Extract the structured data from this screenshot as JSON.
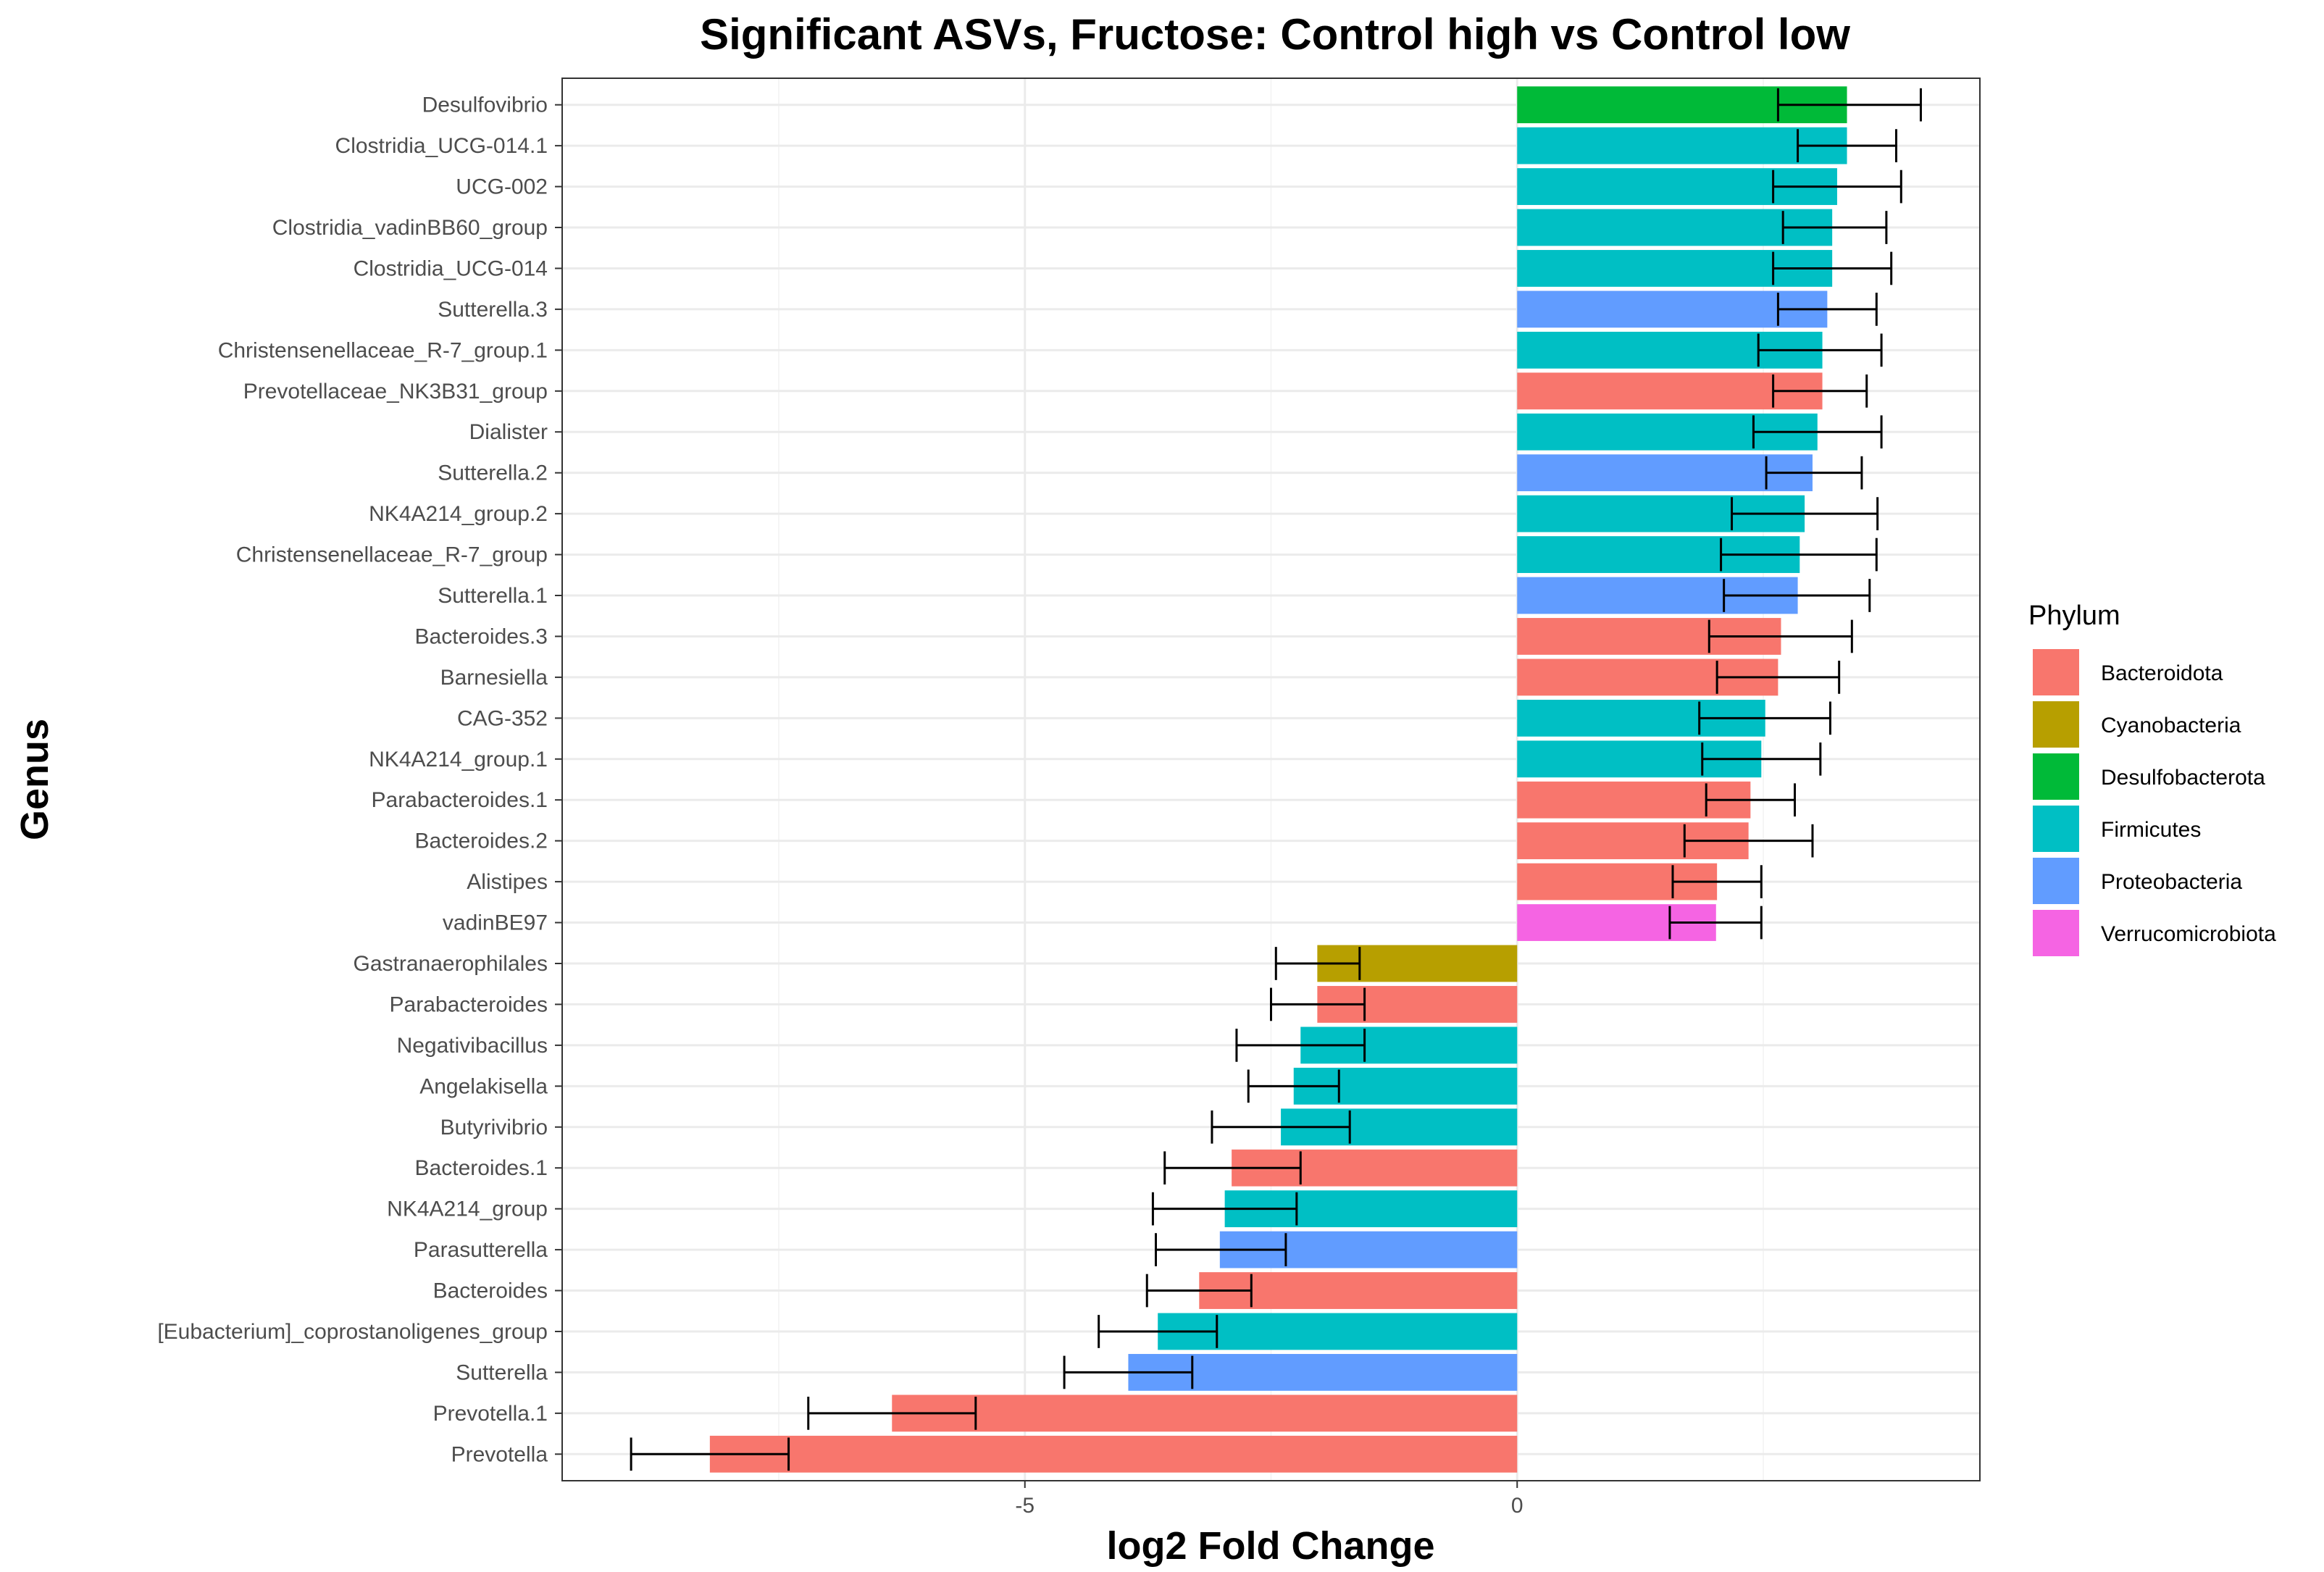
{
  "chart_data": {
    "type": "bar",
    "orientation": "horizontal",
    "title": "Significant ASVs, Fructose: Control high vs Control low",
    "xlabel": "log2 Fold Change",
    "ylabel": "Genus",
    "xlim": [
      -9.7,
      4.7
    ],
    "xticks": [
      -5,
      0
    ],
    "xtick_labels": [
      "-5",
      "0"
    ],
    "grid": true,
    "legend": {
      "title": "Phylum",
      "placement": "right",
      "entries": [
        {
          "name": "Bacteroidota",
          "color": "#F8766D"
        },
        {
          "name": "Cyanobacteria",
          "color": "#B79F00"
        },
        {
          "name": "Desulfobacterota",
          "color": "#00BA38"
        },
        {
          "name": "Firmicutes",
          "color": "#00BFC4"
        },
        {
          "name": "Proteobacteria",
          "color": "#619CFF"
        },
        {
          "name": "Verrucomicrobiota",
          "color": "#F564E3"
        }
      ]
    },
    "bars": [
      {
        "genus": "Desulfovibrio",
        "phylum": "Desulfobacterota",
        "value": 3.35,
        "err_low": 2.65,
        "err_high": 4.1
      },
      {
        "genus": "Clostridia_UCG-014.1",
        "phylum": "Firmicutes",
        "value": 3.35,
        "err_low": 2.85,
        "err_high": 3.85
      },
      {
        "genus": "UCG-002",
        "phylum": "Firmicutes",
        "value": 3.25,
        "err_low": 2.6,
        "err_high": 3.9
      },
      {
        "genus": "Clostridia_vadinBB60_group",
        "phylum": "Firmicutes",
        "value": 3.2,
        "err_low": 2.7,
        "err_high": 3.75
      },
      {
        "genus": "Clostridia_UCG-014",
        "phylum": "Firmicutes",
        "value": 3.2,
        "err_low": 2.6,
        "err_high": 3.8
      },
      {
        "genus": "Sutterella.3",
        "phylum": "Proteobacteria",
        "value": 3.15,
        "err_low": 2.65,
        "err_high": 3.65
      },
      {
        "genus": "Christensenellaceae_R-7_group.1",
        "phylum": "Firmicutes",
        "value": 3.1,
        "err_low": 2.45,
        "err_high": 3.7
      },
      {
        "genus": "Prevotellaceae_NK3B31_group",
        "phylum": "Bacteroidota",
        "value": 3.1,
        "err_low": 2.6,
        "err_high": 3.55
      },
      {
        "genus": "Dialister",
        "phylum": "Firmicutes",
        "value": 3.05,
        "err_low": 2.4,
        "err_high": 3.7
      },
      {
        "genus": "Sutterella.2",
        "phylum": "Proteobacteria",
        "value": 3.0,
        "err_low": 2.53,
        "err_high": 3.5
      },
      {
        "genus": "NK4A214_group.2",
        "phylum": "Firmicutes",
        "value": 2.92,
        "err_low": 2.18,
        "err_high": 3.66
      },
      {
        "genus": "Christensenellaceae_R-7_group",
        "phylum": "Firmicutes",
        "value": 2.87,
        "err_low": 2.07,
        "err_high": 3.65
      },
      {
        "genus": "Sutterella.1",
        "phylum": "Proteobacteria",
        "value": 2.85,
        "err_low": 2.1,
        "err_high": 3.58
      },
      {
        "genus": "Bacteroides.3",
        "phylum": "Bacteroidota",
        "value": 2.68,
        "err_low": 1.95,
        "err_high": 3.4
      },
      {
        "genus": "Barnesiella",
        "phylum": "Bacteroidota",
        "value": 2.65,
        "err_low": 2.03,
        "err_high": 3.27
      },
      {
        "genus": "CAG-352",
        "phylum": "Firmicutes",
        "value": 2.52,
        "err_low": 1.85,
        "err_high": 3.18
      },
      {
        "genus": "NK4A214_group.1",
        "phylum": "Firmicutes",
        "value": 2.48,
        "err_low": 1.88,
        "err_high": 3.08
      },
      {
        "genus": "Parabacteroides.1",
        "phylum": "Bacteroidota",
        "value": 2.37,
        "err_low": 1.92,
        "err_high": 2.82
      },
      {
        "genus": "Bacteroides.2",
        "phylum": "Bacteroidota",
        "value": 2.35,
        "err_low": 1.7,
        "err_high": 3.0
      },
      {
        "genus": "Alistipes",
        "phylum": "Bacteroidota",
        "value": 2.03,
        "err_low": 1.58,
        "err_high": 2.48
      },
      {
        "genus": "vadinBE97",
        "phylum": "Verrucomicrobiota",
        "value": 2.02,
        "err_low": 1.55,
        "err_high": 2.48
      },
      {
        "genus": "Gastranaerophilales",
        "phylum": "Cyanobacteria",
        "value": -2.03,
        "err_low": -2.45,
        "err_high": -1.6
      },
      {
        "genus": "Parabacteroides",
        "phylum": "Bacteroidota",
        "value": -2.03,
        "err_low": -2.5,
        "err_high": -1.55
      },
      {
        "genus": "Negativibacillus",
        "phylum": "Firmicutes",
        "value": -2.2,
        "err_low": -2.85,
        "err_high": -1.55
      },
      {
        "genus": "Angelakisella",
        "phylum": "Firmicutes",
        "value": -2.27,
        "err_low": -2.73,
        "err_high": -1.81
      },
      {
        "genus": "Butyrivibrio",
        "phylum": "Firmicutes",
        "value": -2.4,
        "err_low": -3.1,
        "err_high": -1.7
      },
      {
        "genus": "Bacteroides.1",
        "phylum": "Bacteroidota",
        "value": -2.9,
        "err_low": -3.58,
        "err_high": -2.2
      },
      {
        "genus": "NK4A214_group",
        "phylum": "Firmicutes",
        "value": -2.97,
        "err_low": -3.7,
        "err_high": -2.24
      },
      {
        "genus": "Parasutterella",
        "phylum": "Proteobacteria",
        "value": -3.02,
        "err_low": -3.67,
        "err_high": -2.35
      },
      {
        "genus": "Bacteroides",
        "phylum": "Bacteroidota",
        "value": -3.23,
        "err_low": -3.76,
        "err_high": -2.7
      },
      {
        "genus": "[Eubacterium]_coprostanoligenes_group",
        "phylum": "Firmicutes",
        "value": -3.65,
        "err_low": -4.25,
        "err_high": -3.05
      },
      {
        "genus": "Sutterella",
        "phylum": "Proteobacteria",
        "value": -3.95,
        "err_low": -4.6,
        "err_high": -3.3
      },
      {
        "genus": "Prevotella.1",
        "phylum": "Bacteroidota",
        "value": -6.35,
        "err_low": -7.2,
        "err_high": -5.5
      },
      {
        "genus": "Prevotella",
        "phylum": "Bacteroidota",
        "value": -8.2,
        "err_low": -9.0,
        "err_high": -7.4
      }
    ]
  }
}
